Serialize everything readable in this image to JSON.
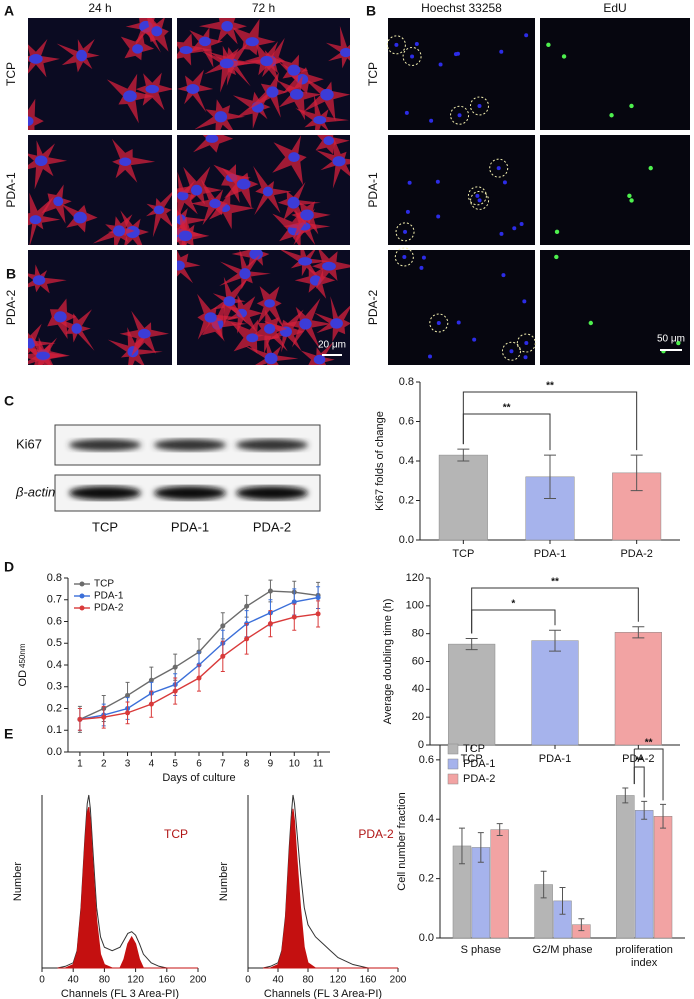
{
  "panel_labels": [
    "A",
    "B",
    "B",
    "C",
    "D",
    "E"
  ],
  "microscopy_a": {
    "columns": [
      "24 h",
      "72 h"
    ],
    "rows": [
      "TCP",
      "PDA-1",
      "PDA-2"
    ],
    "scale_bar": "20 μm"
  },
  "microscopy_b": {
    "columns": [
      "Hoechst 33258",
      "EdU"
    ],
    "rows": [
      "TCP",
      "PDA-1",
      "PDA-2"
    ],
    "scale_bar": "50 μm"
  },
  "western_blot": {
    "bands": [
      "Ki67",
      "β-actin"
    ],
    "lanes": [
      "TCP",
      "PDA-1",
      "PDA-2"
    ]
  },
  "chart_data": [
    {
      "type": "bar",
      "ylabel": "Ki67 folds of change",
      "categories": [
        "TCP",
        "PDA-1",
        "PDA-2"
      ],
      "values": [
        0.43,
        0.32,
        0.34
      ],
      "errors": [
        0.03,
        0.11,
        0.09
      ],
      "colors": [
        "#b5b5b5",
        "#a6b3ec",
        "#f2a3a3"
      ],
      "ylim": [
        0,
        0.8
      ],
      "yticks": [
        {
          "value": 0,
          "label": "0.0"
        },
        0.2,
        0.4,
        0.6,
        0.8
      ],
      "annotations": [
        {
          "label": "**",
          "between": [
            "TCP",
            "PDA-1"
          ]
        },
        {
          "label": "**",
          "between": [
            "TCP",
            "PDA-2"
          ]
        }
      ]
    },
    {
      "type": "line",
      "ylabel": "OD",
      "ylabel_sub": "450nm",
      "xlabel": "Days of culture",
      "x": [
        1,
        2,
        3,
        4,
        5,
        6,
        7,
        8,
        9,
        10,
        11
      ],
      "xlim": [
        0.5,
        11.5
      ],
      "xticks": [
        1,
        2,
        3,
        4,
        5,
        6,
        7,
        8,
        9,
        10,
        11
      ],
      "ylim": [
        0,
        0.8
      ],
      "yticks": [
        {
          "value": 0,
          "label": "0.0"
        },
        0.1,
        0.2,
        0.3,
        0.4,
        0.5,
        0.6,
        0.7,
        0.8
      ],
      "legend": "top-left",
      "series": [
        {
          "name": "TCP",
          "color": "#6b6b6b",
          "values": [
            0.15,
            0.2,
            0.26,
            0.33,
            0.39,
            0.46,
            0.58,
            0.67,
            0.74,
            0.735,
            0.72
          ],
          "errors": [
            0.06,
            0.06,
            0.06,
            0.06,
            0.06,
            0.06,
            0.06,
            0.05,
            0.05,
            0.05,
            0.06
          ]
        },
        {
          "name": "PDA-1",
          "color": "#3b6fd9",
          "values": [
            0.15,
            0.17,
            0.2,
            0.27,
            0.31,
            0.4,
            0.5,
            0.59,
            0.64,
            0.69,
            0.71
          ],
          "errors": [
            0.05,
            0.05,
            0.05,
            0.05,
            0.05,
            0.06,
            0.06,
            0.06,
            0.06,
            0.06,
            0.05
          ]
        },
        {
          "name": "PDA-2",
          "color": "#d93a3a",
          "values": [
            0.15,
            0.16,
            0.18,
            0.22,
            0.28,
            0.34,
            0.44,
            0.52,
            0.59,
            0.62,
            0.635
          ],
          "errors": [
            0.05,
            0.05,
            0.05,
            0.06,
            0.06,
            0.06,
            0.07,
            0.07,
            0.06,
            0.06,
            0.06
          ]
        }
      ]
    },
    {
      "type": "bar",
      "ylabel": "Average doubling time (h)",
      "categories": [
        "TCP",
        "PDA-1",
        "PDA-2"
      ],
      "values": [
        72.5,
        75,
        81
      ],
      "errors": [
        4,
        7.5,
        4
      ],
      "colors": [
        "#b5b5b5",
        "#a6b3ec",
        "#f2a3a3"
      ],
      "ylim": [
        0,
        120
      ],
      "yticks": [
        0,
        20,
        40,
        60,
        80,
        100,
        120
      ],
      "annotations": [
        {
          "label": "*",
          "between": [
            "TCP",
            "PDA-1"
          ]
        },
        {
          "label": "**",
          "between": [
            "TCP",
            "PDA-2"
          ]
        }
      ]
    },
    {
      "type": "area",
      "title": "TCP",
      "title_color": "#b01515",
      "xlabel": "Channels (FL 3 Area-PI)",
      "ylabel": "Number",
      "x": [
        20,
        30,
        40,
        45,
        50,
        55,
        58,
        60,
        62,
        65,
        70,
        75,
        80,
        90,
        100,
        105,
        110,
        115,
        120,
        125,
        130,
        140,
        150,
        160,
        180,
        200
      ],
      "xlim": [
        0,
        200
      ],
      "xticks": [
        0,
        40,
        80,
        120,
        160,
        200
      ],
      "ylim": [
        0,
        100
      ],
      "series": [
        {
          "color": "#333333",
          "values": [
            0,
            1,
            3,
            10,
            35,
            75,
            95,
            100,
            92,
            70,
            35,
            18,
            12,
            10,
            12,
            16,
            20,
            21,
            19,
            14,
            8,
            3,
            1,
            0,
            0,
            0
          ]
        },
        {
          "color": "#c41010",
          "values": [
            0,
            0,
            2,
            9,
            33,
            72,
            90,
            93,
            85,
            62,
            28,
            8,
            2,
            0,
            0,
            0,
            0,
            0,
            0,
            0,
            0,
            0,
            0,
            0,
            0,
            0
          ]
        },
        {
          "color": "#c41010",
          "values": [
            0,
            0,
            0,
            0,
            0,
            0,
            0,
            0,
            0,
            0,
            0,
            0,
            0,
            0,
            0,
            5,
            14,
            18,
            14,
            5,
            0,
            0,
            0,
            0,
            0,
            0
          ]
        }
      ]
    },
    {
      "type": "area",
      "title": "PDA-2",
      "title_color": "#b01515",
      "xlabel": "Channels (FL 3 Area-PI)",
      "ylabel": "Number",
      "x": [
        20,
        30,
        40,
        45,
        50,
        55,
        58,
        60,
        62,
        65,
        70,
        75,
        80,
        90,
        100,
        105,
        110,
        115,
        120,
        125,
        130,
        140,
        150,
        160,
        180,
        200
      ],
      "xlim": [
        0,
        200
      ],
      "xticks": [
        0,
        40,
        80,
        120,
        160,
        200
      ],
      "ylim": [
        0,
        100
      ],
      "series": [
        {
          "color": "#333333",
          "values": [
            0,
            1,
            3,
            10,
            30,
            70,
            90,
            100,
            95,
            80,
            55,
            35,
            25,
            18,
            14,
            12,
            10,
            8,
            6,
            5,
            4,
            2,
            1,
            0,
            0,
            0
          ]
        },
        {
          "color": "#c41010",
          "values": [
            0,
            0,
            2,
            9,
            28,
            66,
            85,
            92,
            85,
            65,
            35,
            12,
            3,
            0,
            0,
            0,
            0,
            0,
            0,
            0,
            0,
            0,
            0,
            0,
            0,
            0
          ]
        }
      ]
    },
    {
      "type": "bar",
      "ylabel": "Cell number fraction",
      "categories": [
        "S phase",
        "G2/M phase",
        "proliferation index"
      ],
      "ylim": [
        0,
        0.65
      ],
      "yticks": [
        {
          "value": 0,
          "label": "0.0"
        },
        0.2,
        0.4,
        0.6
      ],
      "legend": "top-left",
      "series": [
        {
          "name": "TCP",
          "color": "#b5b5b5",
          "values": [
            0.31,
            0.18,
            0.48
          ],
          "errors": [
            0.06,
            0.045,
            0.025
          ]
        },
        {
          "name": "PDA-1",
          "color": "#a6b3ec",
          "values": [
            0.305,
            0.125,
            0.43
          ],
          "errors": [
            0.05,
            0.045,
            0.03
          ]
        },
        {
          "name": "PDA-2",
          "color": "#f2a3a3",
          "values": [
            0.365,
            0.045,
            0.41
          ],
          "errors": [
            0.02,
            0.02,
            0.04
          ]
        }
      ],
      "annotations": [
        {
          "label": "**",
          "category": "proliferation index",
          "between": [
            "TCP",
            "PDA-1"
          ]
        },
        {
          "label": "**",
          "category": "proliferation index",
          "between": [
            "TCP",
            "PDA-2"
          ]
        }
      ]
    }
  ]
}
